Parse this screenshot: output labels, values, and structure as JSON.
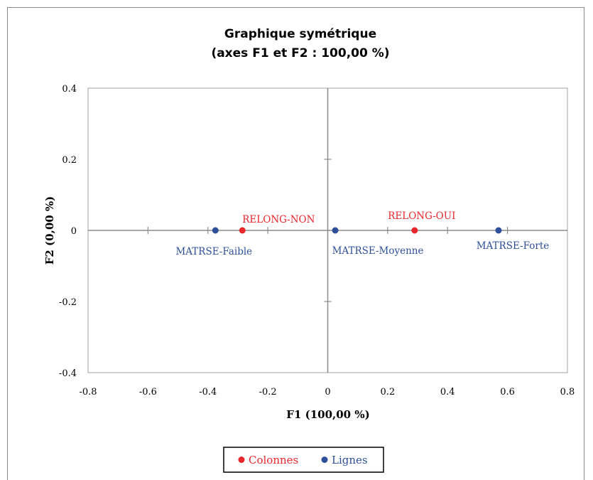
{
  "chart_data": {
    "type": "scatter",
    "title": "Graphique symétrique",
    "subtitle": "(axes F1 et F2 : 100,00 %)",
    "xlabel": "F1 (100,00 %)",
    "ylabel": "F2 (0,00 %)",
    "xlim": [
      -0.8,
      0.8
    ],
    "ylim": [
      -0.4,
      0.4
    ],
    "x_ticks": [
      -0.8,
      -0.6,
      -0.4,
      -0.2,
      0,
      0.2,
      0.4,
      0.6,
      0.8
    ],
    "y_ticks": [
      -0.4,
      -0.2,
      0,
      0.2,
      0.4
    ],
    "x_tick_labels": [
      "-0.8",
      "-0.6",
      "-0.4",
      "-0.2",
      "0",
      "0.2",
      "0.4",
      "0.6",
      "0.8"
    ],
    "y_tick_labels": [
      "-0.4",
      "-0.2",
      "0",
      "0.2",
      "0.4"
    ],
    "grid": false,
    "legend_position": "bottom",
    "series": [
      {
        "name": "Colonnes",
        "color": "#e8262b",
        "points": [
          {
            "label": "RELONG-NON",
            "x": -0.285,
            "y": 0
          },
          {
            "label": "RELONG-OUI",
            "x": 0.29,
            "y": 0
          }
        ]
      },
      {
        "name": "Lignes",
        "color": "#2e4f99",
        "points": [
          {
            "label": "MATRSE-Faible",
            "x": -0.375,
            "y": 0
          },
          {
            "label": "MATRSE-Moyenne",
            "x": 0.025,
            "y": 0
          },
          {
            "label": "MATRSE-Forte",
            "x": 0.57,
            "y": 0
          }
        ]
      }
    ]
  }
}
